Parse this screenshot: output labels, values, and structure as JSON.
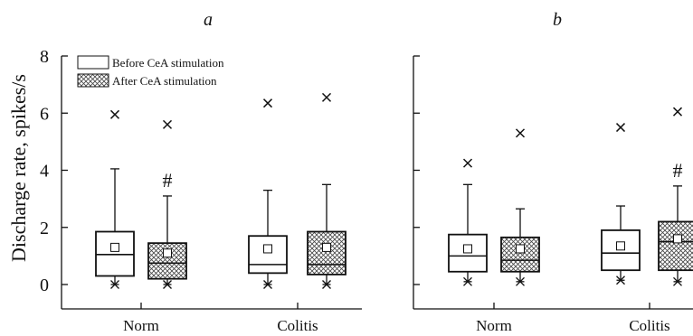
{
  "chart_data": {
    "type": "box",
    "ylabel": "Discharge rate, spikes/s",
    "ylim": [
      0,
      8
    ],
    "yticks": [
      0,
      2,
      4,
      6,
      8
    ],
    "legend": {
      "placement": "top-left",
      "entries": [
        {
          "label": "Before CeA stimulation",
          "fill": "white"
        },
        {
          "label": "After CeA stimulation",
          "fill": "crosshatch"
        }
      ]
    },
    "panels": [
      {
        "label": "a",
        "categories": [
          "Norm",
          "Colitis"
        ],
        "boxes": [
          {
            "group": "Norm",
            "condition": "Before CeA stimulation",
            "whisker_low": 0,
            "q1": 0.3,
            "median": 1.05,
            "q3": 1.85,
            "whisker_high": 4.05,
            "mean": 1.3,
            "outliers_high": [
              5.95
            ],
            "outliers_low": [
              0
            ],
            "significance": ""
          },
          {
            "group": "Norm",
            "condition": "After CeA stimulation",
            "whisker_low": 0,
            "q1": 0.2,
            "median": 0.75,
            "q3": 1.45,
            "whisker_high": 3.1,
            "mean": 1.1,
            "outliers_high": [
              5.6
            ],
            "outliers_low": [
              0
            ],
            "significance": "#"
          },
          {
            "group": "Colitis",
            "condition": "Before CeA stimulation",
            "whisker_low": 0,
            "q1": 0.4,
            "median": 0.7,
            "q3": 1.7,
            "whisker_high": 3.3,
            "mean": 1.25,
            "outliers_high": [
              6.35
            ],
            "outliers_low": [
              0
            ],
            "significance": ""
          },
          {
            "group": "Colitis",
            "condition": "After CeA stimulation",
            "whisker_low": 0,
            "q1": 0.35,
            "median": 0.7,
            "q3": 1.85,
            "whisker_high": 3.5,
            "mean": 1.3,
            "outliers_high": [
              6.55
            ],
            "outliers_low": [
              0
            ],
            "significance": ""
          }
        ]
      },
      {
        "label": "b",
        "categories": [
          "Norm",
          "Colitis"
        ],
        "boxes": [
          {
            "group": "Norm",
            "condition": "Before CeA stimulation",
            "whisker_low": 0.1,
            "q1": 0.45,
            "median": 1.0,
            "q3": 1.75,
            "whisker_high": 3.5,
            "mean": 1.25,
            "outliers_high": [
              4.25
            ],
            "outliers_low": [
              0.1
            ],
            "significance": ""
          },
          {
            "group": "Norm",
            "condition": "After CeA stimulation",
            "whisker_low": 0.1,
            "q1": 0.45,
            "median": 0.85,
            "q3": 1.65,
            "whisker_high": 2.65,
            "mean": 1.25,
            "outliers_high": [
              5.3
            ],
            "outliers_low": [
              0.1
            ],
            "significance": ""
          },
          {
            "group": "Colitis",
            "condition": "Before CeA stimulation",
            "whisker_low": 0.15,
            "q1": 0.5,
            "median": 1.1,
            "q3": 1.9,
            "whisker_high": 2.75,
            "mean": 1.35,
            "outliers_high": [
              5.5
            ],
            "outliers_low": [
              0.15
            ],
            "significance": ""
          },
          {
            "group": "Colitis",
            "condition": "After CeA stimulation",
            "whisker_low": 0.1,
            "q1": 0.5,
            "median": 1.5,
            "q3": 2.2,
            "whisker_high": 3.45,
            "mean": 1.6,
            "outliers_high": [
              6.05
            ],
            "outliers_low": [
              0.1
            ],
            "significance": "#"
          }
        ]
      }
    ]
  }
}
